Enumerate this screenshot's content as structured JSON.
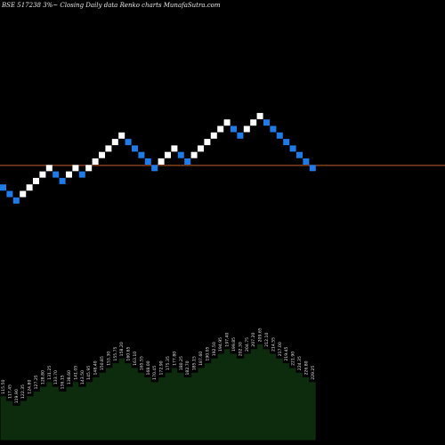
{
  "chart_data": {
    "type": "renko",
    "title": "BSE 517238  3%~  Closing Daily data  Renko  charts MunafaSutra.com",
    "colors": {
      "background": "#000000",
      "up_brick": "#ffffff",
      "down_brick": "#1e7be8",
      "reference_line": "#c2622b",
      "volume_fill": "#0d2b0d",
      "volume_edge": "#000000",
      "volume_label": "#e0e0e0"
    },
    "bricks": [
      "D",
      "D",
      "D",
      "U",
      "U",
      "U",
      "U",
      "U",
      "D",
      "D",
      "U",
      "U",
      "D",
      "U",
      "U",
      "U",
      "U",
      "U",
      "U",
      "D",
      "D",
      "D",
      "D",
      "D",
      "U",
      "U",
      "U",
      "D",
      "D",
      "U",
      "U",
      "U",
      "U",
      "U",
      "U",
      "D",
      "D",
      "U",
      "U",
      "U",
      "D",
      "D",
      "D",
      "D",
      "D",
      "D",
      "D",
      "D"
    ],
    "brick_levels": [
      1,
      0,
      -1,
      0,
      1,
      2,
      3,
      4,
      3,
      2,
      3,
      4,
      3,
      4,
      5,
      6,
      7,
      8,
      9,
      8,
      7,
      6,
      5,
      4,
      5,
      6,
      7,
      6,
      5,
      6,
      7,
      8,
      9,
      10,
      11,
      10,
      9,
      10,
      11,
      12,
      11,
      10,
      9,
      8,
      7,
      6,
      5,
      4
    ],
    "reference_level": 4.4,
    "volume_labels": [
      "115.50",
      "117.45",
      "119.90",
      "122.35",
      "124.80",
      "127.25",
      "128.80",
      "131.25",
      "133.70",
      "136.15",
      "138.60",
      "141.05",
      "143.50",
      "145.95",
      "148.40",
      "150.85",
      "153.30",
      "155.75",
      "158.20",
      "160.65",
      "163.10",
      "165.55",
      "168.00",
      "170.45",
      "172.90",
      "175.35",
      "177.80",
      "180.25",
      "182.70",
      "185.15",
      "187.60",
      "190.05",
      "192.50",
      "194.95",
      "197.40",
      "199.85",
      "202.30",
      "204.75",
      "207.20",
      "209.65",
      "212.10",
      "214.55",
      "217.00",
      "219.45",
      "221.90",
      "224.35",
      "226.80",
      "229.25"
    ]
  }
}
